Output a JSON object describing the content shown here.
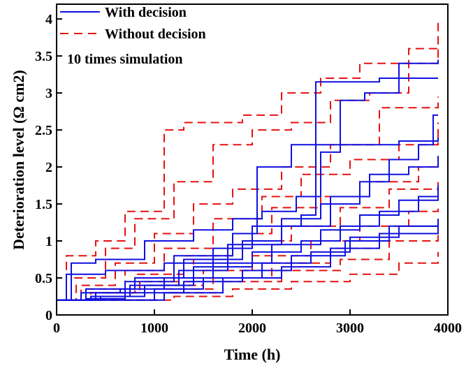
{
  "chart_data": {
    "type": "line",
    "xlabel": "Time (h)",
    "ylabel": "Deterioration level (Ω cm2)",
    "xlim": [
      0,
      4000
    ],
    "ylim": [
      0,
      4.2
    ],
    "x_ticks": [
      "0",
      "1000",
      "2000",
      "3000",
      "4000"
    ],
    "y_ticks": [
      "0",
      "0.5",
      "1",
      "1.5",
      "2",
      "2.5",
      "3",
      "3.5",
      "4"
    ],
    "annotation": "10 times simulation",
    "legend_position": "top-left",
    "legend": [
      {
        "label": "With decision",
        "color": "#1010e0",
        "style": "solid"
      },
      {
        "label": "Without decision",
        "color": "#e81010",
        "style": "dashed"
      }
    ],
    "series": [
      {
        "group": "With decision",
        "color": "#1010e0",
        "style": "solid",
        "x": [
          0,
          150,
          400,
          900,
          1400,
          1800,
          2100,
          2450,
          2700,
          2900,
          3150,
          3500,
          3900
        ],
        "y": [
          0.2,
          0.7,
          0.75,
          1.0,
          1.15,
          1.3,
          1.4,
          1.6,
          2.2,
          2.9,
          3.0,
          3.4,
          3.45
        ]
      },
      {
        "group": "With decision",
        "color": "#1010e0",
        "style": "solid",
        "x": [
          0,
          100,
          500,
          1100,
          1600,
          2000,
          2500,
          2650,
          2900,
          3300,
          3600,
          3900
        ],
        "y": [
          0.2,
          0.55,
          0.6,
          0.7,
          0.9,
          1.2,
          1.35,
          3.15,
          3.15,
          3.2,
          3.2,
          3.2
        ]
      },
      {
        "group": "With decision",
        "color": "#1010e0",
        "style": "solid",
        "x": [
          0,
          300,
          800,
          1300,
          1900,
          2300,
          2700,
          3100,
          3400,
          3700,
          3850,
          3900
        ],
        "y": [
          0.2,
          0.35,
          0.5,
          0.75,
          1.0,
          1.3,
          1.5,
          1.8,
          2.1,
          2.3,
          2.7,
          2.7
        ]
      },
      {
        "group": "With decision",
        "color": "#1010e0",
        "style": "solid",
        "x": [
          0,
          400,
          700,
          1200,
          1800,
          2050,
          2400,
          3000,
          3500,
          3900
        ],
        "y": [
          0.2,
          0.3,
          0.45,
          0.8,
          1.1,
          2.0,
          2.3,
          2.3,
          2.35,
          2.4
        ]
      },
      {
        "group": "With decision",
        "color": "#1010e0",
        "style": "solid",
        "x": [
          0,
          350,
          750,
          1250,
          1750,
          2300,
          2800,
          3200,
          3600,
          3900
        ],
        "y": [
          0.2,
          0.25,
          0.4,
          0.6,
          0.95,
          1.2,
          1.6,
          1.9,
          2.0,
          2.15
        ]
      },
      {
        "group": "With decision",
        "color": "#1010e0",
        "style": "solid",
        "x": [
          0,
          250,
          650,
          1100,
          1600,
          2200,
          2700,
          3100,
          3500,
          3900
        ],
        "y": [
          0.2,
          0.3,
          0.35,
          0.5,
          0.7,
          0.95,
          1.15,
          1.35,
          1.55,
          1.75
        ]
      },
      {
        "group": "With decision",
        "color": "#1010e0",
        "style": "solid",
        "x": [
          0,
          450,
          900,
          1400,
          2000,
          2500,
          2900,
          3300,
          3700,
          3900
        ],
        "y": [
          0.2,
          0.25,
          0.4,
          0.65,
          0.85,
          1.0,
          1.2,
          1.4,
          1.6,
          1.65
        ]
      },
      {
        "group": "With decision",
        "color": "#1010e0",
        "style": "solid",
        "x": [
          0,
          300,
          700,
          1300,
          1900,
          2400,
          2950,
          3400,
          3900
        ],
        "y": [
          0.2,
          0.22,
          0.3,
          0.45,
          0.6,
          0.8,
          1.0,
          1.2,
          1.3
        ]
      },
      {
        "group": "With decision",
        "color": "#1010e0",
        "style": "solid",
        "x": [
          0,
          500,
          1000,
          1500,
          2100,
          2600,
          3000,
          3500,
          3900
        ],
        "y": [
          0.2,
          0.2,
          0.35,
          0.5,
          0.7,
          0.85,
          1.05,
          1.2,
          1.27
        ]
      },
      {
        "group": "With decision",
        "color": "#1010e0",
        "style": "solid",
        "x": [
          0,
          600,
          1100,
          1700,
          2300,
          2800,
          3300,
          3900
        ],
        "y": [
          0.2,
          0.2,
          0.3,
          0.5,
          0.65,
          0.9,
          1.1,
          1.2
        ]
      },
      {
        "group": "Without decision",
        "color": "#e81010",
        "style": "dashed",
        "x": [
          0,
          100,
          400,
          700,
          1100,
          1300,
          1900,
          2300,
          2700,
          3100,
          3500,
          3900
        ],
        "y": [
          0.2,
          0.8,
          1.0,
          1.4,
          2.5,
          2.6,
          2.7,
          3.0,
          3.2,
          3.4,
          3.4,
          3.95
        ]
      },
      {
        "group": "Without decision",
        "color": "#e81010",
        "style": "dashed",
        "x": [
          0,
          150,
          500,
          800,
          1200,
          1600,
          2000,
          2400,
          2800,
          3200,
          3600,
          3900
        ],
        "y": [
          0.2,
          0.5,
          0.9,
          1.3,
          1.8,
          2.3,
          2.5,
          2.6,
          2.9,
          3.0,
          3.6,
          3.65
        ]
      },
      {
        "group": "Without decision",
        "color": "#e81010",
        "style": "dashed",
        "x": [
          0,
          200,
          600,
          1000,
          1400,
          1800,
          2300,
          2800,
          3300,
          3900
        ],
        "y": [
          0.2,
          0.4,
          0.7,
          1.1,
          1.5,
          1.7,
          2.0,
          2.3,
          2.8,
          2.95
        ]
      },
      {
        "group": "Without decision",
        "color": "#e81010",
        "style": "dashed",
        "x": [
          0,
          250,
          700,
          1100,
          1600,
          2100,
          2500,
          3000,
          3500,
          3900
        ],
        "y": [
          0.2,
          0.35,
          0.6,
          0.9,
          1.3,
          1.6,
          1.9,
          2.1,
          2.3,
          2.6
        ]
      },
      {
        "group": "Without decision",
        "color": "#e81010",
        "style": "dashed",
        "x": [
          0,
          300,
          800,
          1300,
          1800,
          2200,
          2700,
          3200,
          3700,
          3900
        ],
        "y": [
          0.2,
          0.3,
          0.55,
          0.8,
          1.1,
          1.45,
          1.6,
          1.8,
          2.0,
          2.0
        ]
      },
      {
        "group": "Without decision",
        "color": "#e81010",
        "style": "dashed",
        "x": [
          0,
          350,
          850,
          1400,
          1900,
          2400,
          2900,
          3400,
          3900
        ],
        "y": [
          0.2,
          0.3,
          0.45,
          0.75,
          1.0,
          1.2,
          1.45,
          1.7,
          1.85
        ]
      },
      {
        "group": "Without decision",
        "color": "#e81010",
        "style": "dashed",
        "x": [
          0,
          400,
          900,
          1500,
          2000,
          2600,
          3100,
          3600,
          3900
        ],
        "y": [
          0.2,
          0.25,
          0.4,
          0.6,
          0.8,
          1.0,
          1.2,
          1.4,
          1.45
        ]
      },
      {
        "group": "Without decision",
        "color": "#e81010",
        "style": "dashed",
        "x": [
          0,
          450,
          1000,
          1600,
          2200,
          2800,
          3300,
          3900
        ],
        "y": [
          0.2,
          0.2,
          0.35,
          0.5,
          0.7,
          0.9,
          1.1,
          1.25
        ]
      },
      {
        "group": "Without decision",
        "color": "#e81010",
        "style": "dashed",
        "x": [
          0,
          500,
          1100,
          1700,
          2300,
          2900,
          3400,
          3900
        ],
        "y": [
          0.2,
          0.2,
          0.3,
          0.45,
          0.6,
          0.75,
          1.0,
          1.15
        ]
      },
      {
        "group": "Without decision",
        "color": "#e81010",
        "style": "dashed",
        "x": [
          0,
          550,
          1200,
          1800,
          2400,
          3000,
          3500,
          3900
        ],
        "y": [
          0.2,
          0.2,
          0.25,
          0.35,
          0.45,
          0.55,
          0.7,
          0.85
        ]
      }
    ]
  }
}
